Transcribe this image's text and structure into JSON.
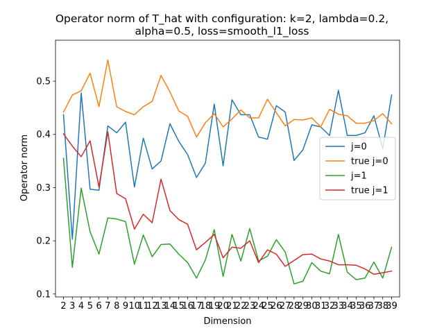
{
  "chart_data": {
    "type": "line",
    "title_line1": "Operator norm of T_hat with configuration: k=2, lambda=0.2,",
    "title_line2": "alpha=0.5, loss=smooth_l1_loss",
    "xlabel": "Dimension",
    "ylabel": "Operator norm",
    "x": [
      2,
      3,
      4,
      5,
      6,
      7,
      8,
      9,
      10,
      11,
      12,
      13,
      14,
      15,
      16,
      17,
      18,
      19,
      20,
      21,
      22,
      23,
      24,
      25,
      26,
      27,
      28,
      29,
      30,
      31,
      32,
      33,
      34,
      35,
      36,
      37,
      38,
      39
    ],
    "xlim": [
      1.1,
      39.9
    ],
    "ylim": [
      0.0945,
      0.577
    ],
    "yticks": [
      0.1,
      0.2,
      0.3,
      0.4,
      0.5
    ],
    "ytick_labels": [
      "0.1",
      "0.2",
      "0.3",
      "0.4",
      "0.5"
    ],
    "grid": false,
    "legend_position": "center-right",
    "series": [
      {
        "name": "j=0",
        "color": "#1f77b4",
        "values": [
          0.437,
          0.203,
          0.478,
          0.297,
          0.295,
          0.416,
          0.403,
          0.423,
          0.301,
          0.393,
          0.335,
          0.35,
          0.42,
          0.387,
          0.362,
          0.319,
          0.346,
          0.457,
          0.341,
          0.465,
          0.437,
          0.437,
          0.395,
          0.391,
          0.454,
          0.442,
          0.351,
          0.371,
          0.418,
          0.414,
          0.398,
          0.483,
          0.398,
          0.398,
          0.403,
          0.435,
          0.373,
          0.474
        ]
      },
      {
        "name": "true j=0",
        "color": "#ff7f0e",
        "values": [
          0.442,
          0.474,
          0.482,
          0.515,
          0.452,
          0.54,
          0.452,
          0.443,
          0.437,
          0.452,
          0.462,
          0.511,
          0.48,
          0.444,
          0.434,
          0.395,
          0.422,
          0.439,
          0.414,
          0.429,
          0.446,
          0.431,
          0.431,
          0.466,
          0.441,
          0.416,
          0.428,
          0.427,
          0.431,
          0.414,
          0.447,
          0.438,
          0.435,
          0.421,
          0.421,
          0.426,
          0.439,
          0.42
        ]
      },
      {
        "name": "j=1",
        "color": "#2ca02c",
        "values": [
          0.355,
          0.15,
          0.299,
          0.217,
          0.175,
          0.243,
          0.241,
          0.236,
          0.156,
          0.211,
          0.17,
          0.193,
          0.194,
          0.175,
          0.159,
          0.13,
          0.164,
          0.221,
          0.133,
          0.212,
          0.162,
          0.223,
          0.162,
          0.171,
          0.202,
          0.179,
          0.119,
          0.124,
          0.159,
          0.143,
          0.138,
          0.212,
          0.141,
          0.127,
          0.13,
          0.16,
          0.13,
          0.188
        ]
      },
      {
        "name": "true j=1",
        "color": "#d62728",
        "values": [
          0.401,
          0.378,
          0.358,
          0.388,
          0.301,
          0.405,
          0.289,
          0.279,
          0.222,
          0.25,
          0.234,
          0.316,
          0.257,
          0.24,
          0.231,
          0.183,
          0.197,
          0.212,
          0.168,
          0.188,
          0.186,
          0.2,
          0.159,
          0.183,
          0.175,
          0.152,
          0.163,
          0.174,
          0.175,
          0.166,
          0.162,
          0.155,
          0.155,
          0.154,
          0.147,
          0.137,
          0.14,
          0.143
        ]
      }
    ]
  }
}
